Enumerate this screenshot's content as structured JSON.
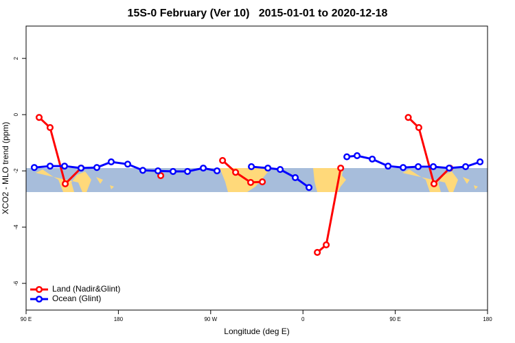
{
  "chart_data": {
    "type": "line",
    "title": "15S-0 February (Ver 10)   2015-01-01 to 2020-12-18",
    "x_label": "Longitude (deg E)",
    "y_label": "XCO2 - MLO trend (ppm)",
    "xlim": [
      90,
      540
    ],
    "ylim": [
      -6.95,
      3.15
    ],
    "xticks": [
      {
        "value": 90,
        "label": "90 E"
      },
      180,
      {
        "value": 270,
        "label": "90 W"
      },
      {
        "value": 360,
        "label": "0"
      },
      {
        "value": 450,
        "label": "90 E"
      },
      {
        "value": 540,
        "label": "180"
      }
    ],
    "yticks": [
      -6,
      -4,
      -2,
      0,
      2
    ],
    "legend": "bottom-left",
    "series": [
      {
        "name": "Land (Nadir&Glint)",
        "color": "#ff0000",
        "x": [
          102.7,
          113.4,
          128.2,
          143.6,
          null,
          221.3,
          null,
          281.6,
          294.3,
          309.0,
          320.4,
          null,
          374.0,
          382.7,
          396.8,
          null,
          462.7,
          473.0,
          487.8,
          503.2
        ],
        "values": [
          -0.1,
          -0.46,
          -2.46,
          -1.9,
          null,
          -2.17,
          null,
          -1.63,
          -2.05,
          -2.41,
          -2.39,
          null,
          -4.9,
          -4.63,
          -1.9,
          null,
          -0.1,
          -0.46,
          -2.46,
          -1.9
        ]
      },
      {
        "name": "Ocean (Glint)",
        "color": "#0000ff",
        "x": [
          98.0,
          113.4,
          127.5,
          143.6,
          159.0,
          173.0,
          189.1,
          203.8,
          218.6,
          233.3,
          247.4,
          262.8,
          276.2,
          null,
          309.7,
          325.8,
          337.8,
          352.5,
          365.9,
          null,
          402.8,
          412.8,
          427.6,
          443.0,
          457.7,
          472.4,
          487.1,
          502.6,
          518.6,
          532.7
        ],
        "values": [
          -1.88,
          -1.83,
          -1.83,
          -1.9,
          -1.88,
          -1.68,
          -1.76,
          -1.98,
          -2.0,
          -2.02,
          -2.02,
          -1.9,
          -2.0,
          null,
          -1.85,
          -1.9,
          -1.95,
          -2.24,
          -2.59,
          null,
          -1.5,
          -1.46,
          -1.58,
          -1.83,
          -1.88,
          -1.85,
          -1.85,
          -1.9,
          -1.85,
          -1.68
        ]
      }
    ]
  }
}
